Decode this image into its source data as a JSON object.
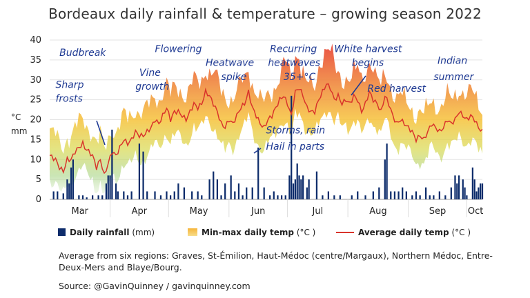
{
  "title": "Bordeaux daily rainfall & temperature – growing season 2022",
  "y_unit_labels": [
    "°C",
    "mm"
  ],
  "legend": {
    "rain_label": "Daily rainfall",
    "rain_unit": " (mm)",
    "band_label": "Min-max daily temp",
    "band_unit": " (°C )",
    "avg_label": "Average daily temp",
    "avg_unit": " (°C )"
  },
  "note": "Average from six regions: Graves, St-Émilion, Haut-Médoc (centre/Margaux), Northern Médoc, Entre-Deux-Mers and Blaye/Bourg.",
  "source": "Source: @GavinQuinney / gavinquinney.com",
  "colors": {
    "rain": "#0d2c6b",
    "avg": "#d9342b",
    "band_top": "#e8423a",
    "band_mid": "#f6b43a",
    "band_bottom": "#8cc84b",
    "annotation": "#1f3a93"
  },
  "chart_data": {
    "type": "bar",
    "x_label_months": [
      "Mar",
      "Apr",
      "May",
      "Jun",
      "Jul",
      "Aug",
      "Sep",
      "Oct"
    ],
    "ylim": [
      0,
      40
    ],
    "yticks": [
      0,
      5,
      10,
      15,
      20,
      25,
      30,
      35,
      40
    ],
    "grid": true,
    "legend_position": "bottom",
    "series_names": [
      "Daily rainfall",
      "Min-max daily temp",
      "Average daily temp"
    ],
    "avg_knots": [
      [
        0,
        11
      ],
      [
        3,
        10
      ],
      [
        5,
        8
      ],
      [
        7,
        7
      ],
      [
        9,
        10
      ],
      [
        11,
        10
      ],
      [
        13,
        12
      ],
      [
        15,
        13
      ],
      [
        17,
        14
      ],
      [
        18,
        13
      ],
      [
        20,
        12
      ],
      [
        22,
        11
      ],
      [
        24,
        8
      ],
      [
        26,
        10
      ],
      [
        28,
        6
      ],
      [
        30,
        9
      ],
      [
        32,
        12
      ],
      [
        34,
        11
      ],
      [
        36,
        13
      ],
      [
        38,
        15
      ],
      [
        40,
        14
      ],
      [
        42,
        15
      ],
      [
        44,
        17
      ],
      [
        46,
        16
      ],
      [
        48,
        16
      ],
      [
        50,
        17
      ],
      [
        52,
        18
      ],
      [
        54,
        20
      ],
      [
        56,
        19
      ],
      [
        58,
        21
      ],
      [
        60,
        23
      ],
      [
        62,
        20
      ],
      [
        64,
        22
      ],
      [
        66,
        22
      ],
      [
        68,
        21
      ],
      [
        70,
        20
      ],
      [
        72,
        22
      ],
      [
        74,
        24
      ],
      [
        76,
        23
      ],
      [
        78,
        24
      ],
      [
        80,
        27
      ],
      [
        82,
        26
      ],
      [
        84,
        24
      ],
      [
        86,
        22
      ],
      [
        88,
        19
      ],
      [
        90,
        18
      ],
      [
        92,
        20
      ],
      [
        94,
        19
      ],
      [
        96,
        21
      ],
      [
        98,
        23
      ],
      [
        100,
        24
      ],
      [
        102,
        27
      ],
      [
        104,
        23
      ],
      [
        106,
        21
      ],
      [
        108,
        19
      ],
      [
        110,
        18
      ],
      [
        112,
        20
      ],
      [
        114,
        21
      ],
      [
        116,
        23
      ],
      [
        118,
        25
      ],
      [
        120,
        26
      ],
      [
        122,
        24
      ],
      [
        124,
        21
      ],
      [
        126,
        27
      ],
      [
        128,
        28
      ],
      [
        130,
        26
      ],
      [
        132,
        23
      ],
      [
        134,
        22
      ],
      [
        136,
        22
      ],
      [
        138,
        25
      ],
      [
        140,
        27
      ],
      [
        142,
        29
      ],
      [
        144,
        28
      ],
      [
        146,
        25
      ],
      [
        148,
        26
      ],
      [
        150,
        24
      ],
      [
        152,
        25
      ],
      [
        154,
        24
      ],
      [
        156,
        26
      ],
      [
        158,
        25
      ],
      [
        160,
        22
      ],
      [
        162,
        24
      ],
      [
        164,
        27
      ],
      [
        166,
        25
      ],
      [
        168,
        24
      ],
      [
        170,
        22
      ],
      [
        172,
        26
      ],
      [
        174,
        24
      ],
      [
        176,
        21
      ],
      [
        178,
        19
      ],
      [
        180,
        20
      ],
      [
        182,
        19
      ],
      [
        184,
        18
      ],
      [
        186,
        17
      ],
      [
        188,
        15
      ],
      [
        190,
        16
      ],
      [
        192,
        15
      ],
      [
        194,
        17
      ],
      [
        196,
        19
      ],
      [
        198,
        18
      ],
      [
        200,
        17
      ],
      [
        202,
        18
      ],
      [
        204,
        20
      ],
      [
        206,
        19
      ],
      [
        208,
        20
      ],
      [
        210,
        22
      ],
      [
        212,
        21
      ],
      [
        214,
        20
      ],
      [
        216,
        21
      ],
      [
        218,
        20
      ],
      [
        220,
        18
      ],
      [
        222,
        17
      ]
    ],
    "rain_days": [
      [
        2,
        2
      ],
      [
        4,
        2
      ],
      [
        7,
        1.5
      ],
      [
        9,
        5
      ],
      [
        10,
        4
      ],
      [
        11,
        8
      ],
      [
        12,
        10
      ],
      [
        15,
        1
      ],
      [
        17,
        1
      ],
      [
        19,
        0.5
      ],
      [
        22,
        1
      ],
      [
        25,
        1
      ],
      [
        27,
        1
      ],
      [
        29,
        4
      ],
      [
        30,
        6
      ],
      [
        31,
        6
      ],
      [
        32,
        17.5
      ],
      [
        34,
        4
      ],
      [
        35,
        2
      ],
      [
        38,
        2
      ],
      [
        40,
        1
      ],
      [
        42,
        2
      ],
      [
        46,
        14
      ],
      [
        48,
        12
      ],
      [
        50,
        2
      ],
      [
        54,
        2
      ],
      [
        57,
        1
      ],
      [
        60,
        2
      ],
      [
        62,
        1
      ],
      [
        64,
        2
      ],
      [
        66,
        4
      ],
      [
        69,
        3
      ],
      [
        73,
        2
      ],
      [
        76,
        2
      ],
      [
        78,
        1
      ],
      [
        82,
        5
      ],
      [
        84,
        7
      ],
      [
        86,
        5
      ],
      [
        88,
        1
      ],
      [
        90,
        4
      ],
      [
        93,
        6
      ],
      [
        95,
        2
      ],
      [
        97,
        4
      ],
      [
        99,
        1
      ],
      [
        101,
        3
      ],
      [
        104,
        3
      ],
      [
        107,
        13
      ],
      [
        110,
        3
      ],
      [
        113,
        1
      ],
      [
        115,
        2
      ],
      [
        117,
        1
      ],
      [
        119,
        1
      ],
      [
        121,
        1
      ],
      [
        123,
        6
      ],
      [
        124,
        26
      ],
      [
        125,
        4
      ],
      [
        126,
        5
      ],
      [
        127,
        9
      ],
      [
        128,
        6
      ],
      [
        129,
        5
      ],
      [
        130,
        6
      ],
      [
        132,
        3
      ],
      [
        133,
        5
      ],
      [
        137,
        7
      ],
      [
        140,
        1
      ],
      [
        143,
        2
      ],
      [
        146,
        1
      ],
      [
        149,
        1
      ],
      [
        155,
        1
      ],
      [
        158,
        2
      ],
      [
        162,
        1
      ],
      [
        166,
        2
      ],
      [
        169,
        3
      ],
      [
        172,
        10
      ],
      [
        173,
        14
      ],
      [
        175,
        2
      ],
      [
        177,
        2
      ],
      [
        179,
        2
      ],
      [
        181,
        3
      ],
      [
        183,
        2
      ],
      [
        186,
        1
      ],
      [
        188,
        2
      ],
      [
        190,
        1
      ],
      [
        193,
        3
      ],
      [
        195,
        1
      ],
      [
        197,
        1
      ],
      [
        200,
        2
      ],
      [
        203,
        1
      ],
      [
        206,
        3
      ],
      [
        208,
        6
      ],
      [
        209,
        4
      ],
      [
        210,
        6
      ],
      [
        212,
        5
      ],
      [
        213,
        3
      ],
      [
        214,
        1
      ],
      [
        217,
        8
      ],
      [
        218,
        5
      ],
      [
        219,
        2
      ],
      [
        220,
        3
      ],
      [
        221,
        4
      ],
      [
        222,
        4
      ]
    ]
  },
  "annotations": [
    {
      "text": "Budbreak",
      "at": [
        5,
        36
      ]
    },
    {
      "text": "Sharp",
      "at": [
        3,
        28
      ]
    },
    {
      "text": "frosts",
      "at": [
        3,
        24.5
      ]
    },
    {
      "text": "Vine",
      "at": [
        46,
        31
      ]
    },
    {
      "text": "growth",
      "at": [
        44,
        27.5
      ]
    },
    {
      "text": "Flowering",
      "at": [
        54,
        37
      ]
    },
    {
      "text": "Heatwave",
      "at": [
        80,
        33.5
      ]
    },
    {
      "text": "spike",
      "at": [
        88,
        30
      ]
    },
    {
      "text": "Recurring",
      "at": [
        113,
        37
      ]
    },
    {
      "text": "heatwaves",
      "at": [
        112,
        33.5
      ]
    },
    {
      "text": "35+°C",
      "at": [
        120,
        30
      ]
    },
    {
      "text": "White harvest",
      "at": [
        146,
        37
      ]
    },
    {
      "text": "begins",
      "at": [
        155,
        33.5
      ]
    },
    {
      "text": "Red harvest",
      "at": [
        163,
        27
      ]
    },
    {
      "text": "Indian",
      "at": [
        199,
        34
      ]
    },
    {
      "text": "summer",
      "at": [
        197,
        30
      ]
    },
    {
      "text": "Storms, rain",
      "at": [
        111,
        16.5
      ]
    },
    {
      "text": "Hail in parts",
      "at": [
        111,
        12.5
      ]
    }
  ]
}
